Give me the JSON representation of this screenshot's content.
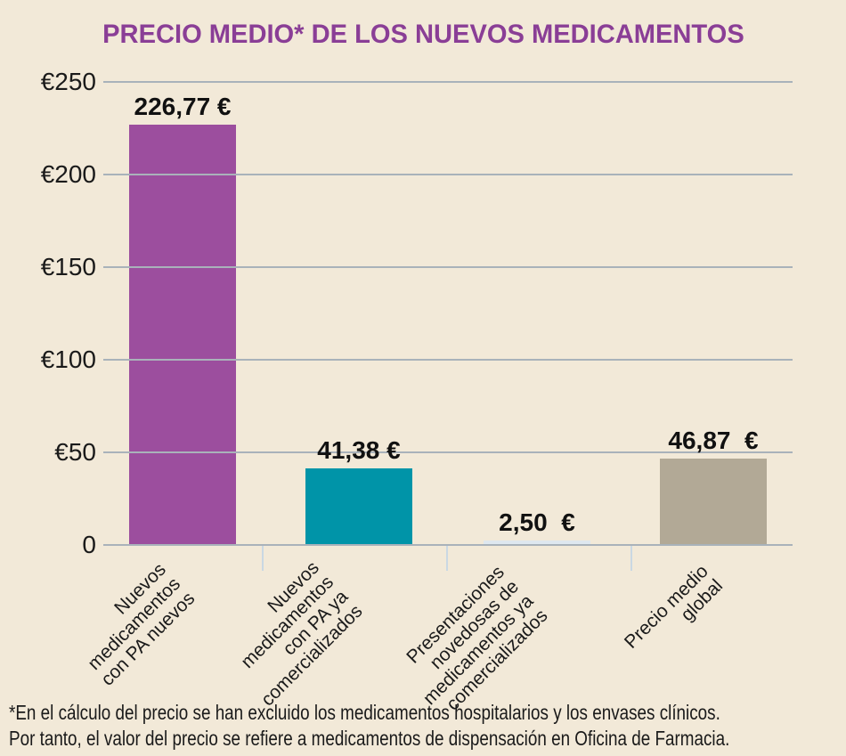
{
  "title": "PRECIO MEDIO* DE LOS NUEVOS MEDICAMENTOS",
  "chart_data": {
    "type": "bar",
    "title": "PRECIO MEDIO* DE LOS NUEVOS MEDICAMENTOS",
    "categories": [
      "Nuevos medicamentos con PA nuevos",
      "Nuevos medicamentos con PA ya comercializados",
      "Presentaciones novedosas de medicamentos ya comercializados",
      "Precio medio global"
    ],
    "category_lines": [
      [
        "Nuevos",
        "medicamentos",
        "con PA nuevos"
      ],
      [
        "Nuevos",
        "medicamentos",
        "con PA ya",
        "comercializados"
      ],
      [
        "Presentaciones",
        "novedosas de",
        "medicamentos ya",
        "comercializados"
      ],
      [
        "Precio medio",
        "global"
      ]
    ],
    "values": [
      226.77,
      41.38,
      2.5,
      46.87
    ],
    "value_labels": [
      "226,77 €",
      "41,38 €",
      "2,50  €",
      "46,87  €"
    ],
    "bar_colors": [
      "#9c4e9e",
      "#0094a8",
      "#dee7ef",
      "#b2a996"
    ],
    "currency": "EUR",
    "ylim": [
      0,
      250
    ],
    "yticks": [
      {
        "value": 250,
        "label": "€250"
      },
      {
        "value": 200,
        "label": "€200"
      },
      {
        "value": 150,
        "label": "€150"
      },
      {
        "value": 100,
        "label": "€100"
      },
      {
        "value": 50,
        "label": "€50"
      },
      {
        "value": 0,
        "label": "0"
      }
    ],
    "grid": true,
    "legend": "none"
  },
  "footnote": {
    "line1": "*En el cálculo del precio se han excluido los medicamentos hospitalarios y los envases clínicos.",
    "line2": "Por tanto, el valor del precio se refiere a medicamentos de dispensación en Oficina de Farmacia."
  },
  "colors": {
    "background": "#f2e9d8",
    "title": "#8a3e96",
    "gridline": "#a9b2ba",
    "axis_tick": "#cad8e3",
    "text": "#1a1a1a",
    "bar_purple": "#9c4e9e",
    "bar_teal": "#0094a8",
    "bar_light": "#dee7ef",
    "bar_tan": "#b2a996"
  }
}
